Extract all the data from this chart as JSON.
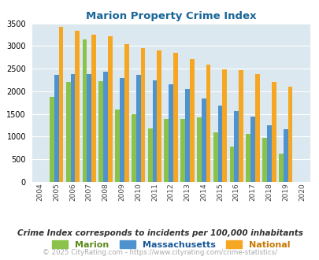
{
  "title": "Marion Property Crime Index",
  "years": [
    2004,
    2005,
    2006,
    2007,
    2008,
    2009,
    2010,
    2011,
    2012,
    2013,
    2014,
    2015,
    2016,
    2017,
    2018,
    2019,
    2020
  ],
  "marion": [
    null,
    1880,
    2200,
    3150,
    2220,
    1600,
    1500,
    1190,
    1390,
    1390,
    1430,
    1100,
    790,
    1060,
    980,
    630,
    null
  ],
  "massachusetts": [
    null,
    2370,
    2390,
    2390,
    2430,
    2300,
    2360,
    2250,
    2160,
    2050,
    1850,
    1680,
    1560,
    1450,
    1260,
    1170,
    null
  ],
  "national": [
    null,
    3420,
    3340,
    3260,
    3210,
    3040,
    2950,
    2910,
    2860,
    2720,
    2590,
    2490,
    2470,
    2380,
    2200,
    2110,
    null
  ],
  "marion_color": "#8bc34a",
  "mass_color": "#4f93ce",
  "national_color": "#f5a623",
  "bg_color": "#dce8f0",
  "ylim": [
    0,
    3500
  ],
  "yticks": [
    0,
    500,
    1000,
    1500,
    2000,
    2500,
    3000,
    3500
  ],
  "legend_labels": [
    "Marion",
    "Massachusetts",
    "National"
  ],
  "legend_label_colors": [
    "#5a8a1a",
    "#1a5a99",
    "#c87800"
  ],
  "footnote1": "Crime Index corresponds to incidents per 100,000 inhabitants",
  "footnote2": "© 2025 CityRating.com - https://www.cityrating.com/crime-statistics/",
  "title_color": "#1a6699",
  "footnote1_color": "#333333",
  "footnote2_color": "#aaaaaa"
}
